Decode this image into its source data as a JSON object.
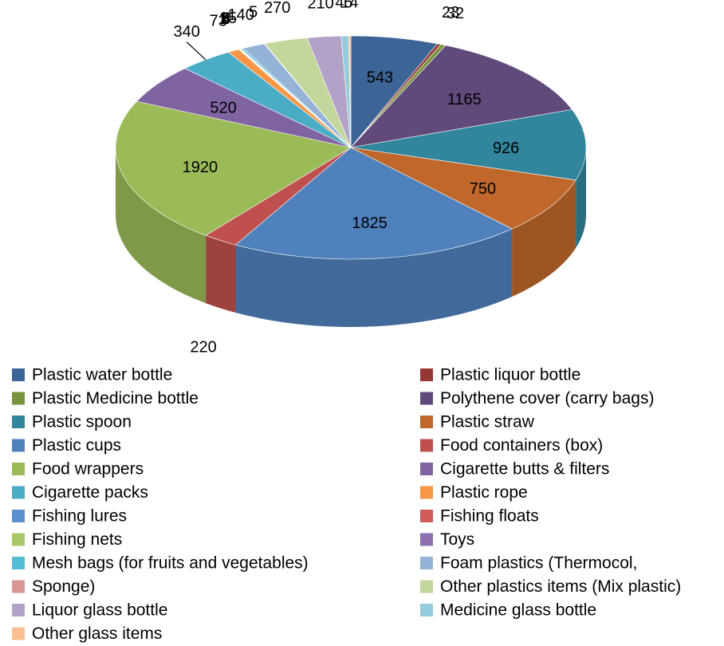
{
  "chart_data": {
    "type": "pie3d",
    "categories": [
      "Plastic water bottle",
      "Plastic liquor bottle",
      "Plastic Medicine bottle",
      "Polythene cover (carry bags)",
      "Plastic spoon",
      "Plastic straw",
      "Plastic cups",
      "Food containers (box)",
      "Food wrappers",
      "Cigarette butts & filters",
      "Cigarette packs",
      "Plastic rope",
      "Fishing lures",
      "Fishing floats",
      "Fishing nets",
      "Toys",
      "Mesh bags (for fruits and vegetables)",
      "Foam plastics (Thermocol,",
      "Sponge)",
      "Other plastics items (Mix plastic)",
      "Liquor glass bottle",
      "Medicine glass bottle",
      "Other glass items"
    ],
    "values": [
      543,
      23,
      32,
      1165,
      926,
      750,
      1825,
      220,
      1920,
      520,
      340,
      73,
      2,
      5,
      6,
      4,
      15,
      140,
      5,
      270,
      210,
      45,
      14
    ],
    "colors": [
      "#3c6496",
      "#953735",
      "#77933c",
      "#604a7b",
      "#31859c",
      "#c0682c",
      "#4f81bd",
      "#c0504d",
      "#9bbb59",
      "#8064a2",
      "#4bacc6",
      "#f79646",
      "#5a8fd0",
      "#d05a57",
      "#a9c969",
      "#8c70b0",
      "#55bcd6",
      "#95b3d7",
      "#d99694",
      "#c3d69b",
      "#b3a2c7",
      "#93cddd",
      "#fac090"
    ],
    "legend": "bottom"
  }
}
